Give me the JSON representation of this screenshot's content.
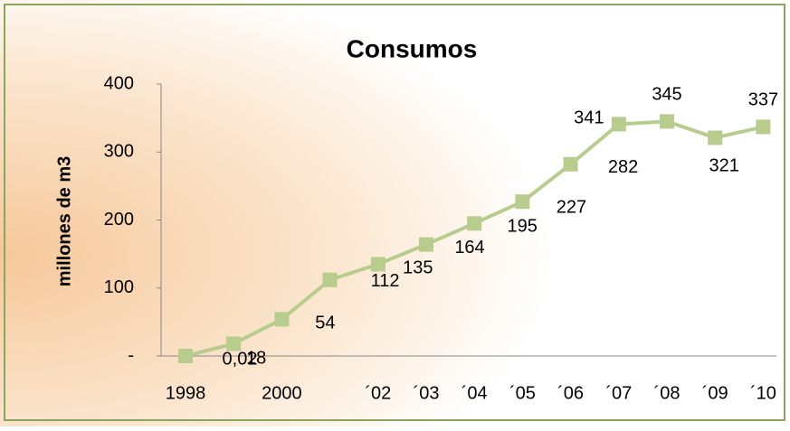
{
  "chart_data": {
    "type": "line",
    "title": "Consumos",
    "y_label": "millones de m3",
    "categories": [
      "1998",
      null,
      "2000",
      null,
      "´02",
      "´03",
      "´04",
      "´05",
      "´06",
      "´07",
      "´08",
      "´09",
      "´10"
    ],
    "series": [
      {
        "name": "Consumos",
        "color": "#b8cc8e",
        "values": [
          0.02,
          18,
          54,
          112,
          135,
          164,
          195,
          227,
          282,
          341,
          345,
          321,
          337
        ],
        "value_labels": [
          "0,02",
          "18",
          "54",
          "112",
          "135",
          "164",
          "195",
          "227",
          "282",
          "341",
          "345",
          "321",
          "337"
        ]
      }
    ],
    "ylim": [
      0,
      400
    ],
    "yticks": [
      {
        "value": 0,
        "label": "-"
      },
      100,
      200,
      300,
      400
    ],
    "grid": false
  }
}
